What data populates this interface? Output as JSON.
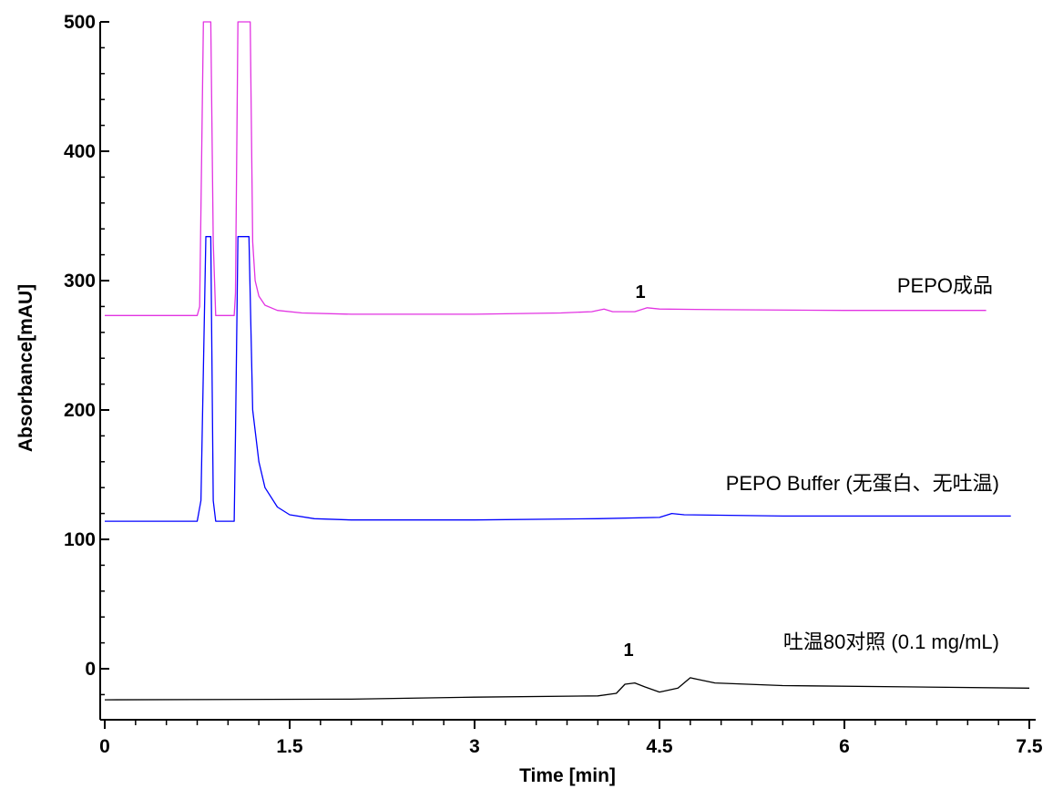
{
  "chart_data": {
    "type": "line",
    "title": "",
    "xlabel": "Time [min]",
    "ylabel": "Absorbance[mAU]",
    "xlim": [
      0,
      7.5
    ],
    "ylim": [
      -40,
      500
    ],
    "x_ticks": [
      "0",
      "1.5",
      "3",
      "4.5",
      "6",
      "7.5"
    ],
    "y_ticks": [
      "0",
      "100",
      "200",
      "300",
      "400",
      "500"
    ],
    "grid": false,
    "series": [
      {
        "name": "PEPO成品",
        "color": "#e233e2",
        "points": [
          [
            0,
            273
          ],
          [
            0.75,
            273
          ],
          [
            0.77,
            280
          ],
          [
            0.8,
            500
          ],
          [
            0.86,
            500
          ],
          [
            0.88,
            330
          ],
          [
            0.9,
            273
          ],
          [
            1.05,
            273
          ],
          [
            1.06,
            290
          ],
          [
            1.08,
            500
          ],
          [
            1.18,
            500
          ],
          [
            1.2,
            330
          ],
          [
            1.22,
            300
          ],
          [
            1.25,
            288
          ],
          [
            1.3,
            281
          ],
          [
            1.4,
            277
          ],
          [
            1.6,
            275
          ],
          [
            2,
            274
          ],
          [
            3,
            274
          ],
          [
            3.7,
            275
          ],
          [
            3.95,
            276
          ],
          [
            4.05,
            278
          ],
          [
            4.12,
            276
          ],
          [
            4.3,
            276
          ],
          [
            4.4,
            279
          ],
          [
            4.5,
            278
          ],
          [
            5,
            277.5
          ],
          [
            6,
            277
          ],
          [
            7.15,
            277
          ]
        ]
      },
      {
        "name": "PEPO Buffer (无蛋白、无吐温)",
        "color": "#0000ff",
        "points": [
          [
            0,
            114
          ],
          [
            0.75,
            114
          ],
          [
            0.78,
            130
          ],
          [
            0.82,
            334
          ],
          [
            0.86,
            334
          ],
          [
            0.88,
            130
          ],
          [
            0.9,
            114
          ],
          [
            1.05,
            114
          ],
          [
            1.06,
            180
          ],
          [
            1.08,
            334
          ],
          [
            1.17,
            334
          ],
          [
            1.2,
            200
          ],
          [
            1.25,
            160
          ],
          [
            1.3,
            140
          ],
          [
            1.4,
            125
          ],
          [
            1.5,
            119
          ],
          [
            1.7,
            116
          ],
          [
            2,
            115
          ],
          [
            3,
            115
          ],
          [
            4,
            116
          ],
          [
            4.5,
            117
          ],
          [
            4.6,
            120
          ],
          [
            4.7,
            119
          ],
          [
            5.5,
            118
          ],
          [
            6.5,
            118
          ],
          [
            7.35,
            118
          ]
        ]
      },
      {
        "name": "吐温80对照 (0.1 mg/mL)",
        "color": "#000000",
        "points": [
          [
            0,
            -24
          ],
          [
            2,
            -23.5
          ],
          [
            3,
            -22
          ],
          [
            4,
            -21
          ],
          [
            4.15,
            -19
          ],
          [
            4.22,
            -12
          ],
          [
            4.3,
            -11
          ],
          [
            4.38,
            -14
          ],
          [
            4.5,
            -18
          ],
          [
            4.65,
            -15
          ],
          [
            4.75,
            -7
          ],
          [
            4.8,
            -8
          ],
          [
            4.95,
            -11
          ],
          [
            5.5,
            -13
          ],
          [
            6.5,
            -14
          ],
          [
            7.5,
            -15
          ]
        ]
      }
    ],
    "annotations": [
      {
        "text": "1",
        "x": 4.2,
        "y": 287
      },
      {
        "text": "1",
        "x": 4.1,
        "y": 8
      }
    ]
  }
}
